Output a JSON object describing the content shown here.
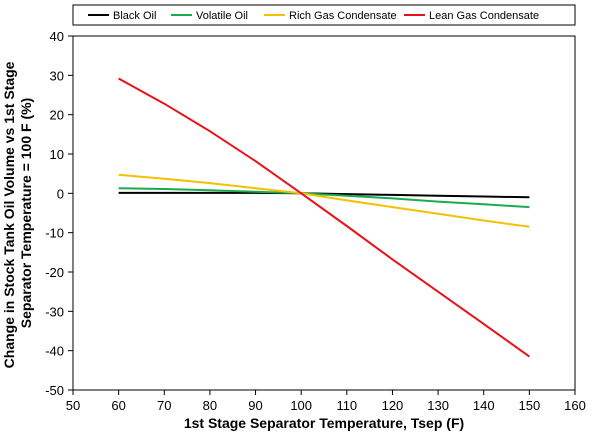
{
  "chart_data": {
    "type": "line",
    "title": "",
    "xlabel": "1st Stage Separator Temperature, Tsep (F)",
    "ylabel_lines": [
      "Change in Stock Tank Oil Volume vs 1st Stage",
      "Separator Temperature = 100 F (%)"
    ],
    "xlim": [
      50,
      160
    ],
    "ylim": [
      -50,
      40
    ],
    "xticks": [
      50,
      60,
      70,
      80,
      90,
      100,
      110,
      120,
      130,
      140,
      150,
      160
    ],
    "yticks": [
      -50,
      -40,
      -30,
      -20,
      -10,
      0,
      10,
      20,
      30,
      40
    ],
    "grid": false,
    "legend_position": "top",
    "x": [
      60,
      70,
      80,
      90,
      100,
      110,
      120,
      130,
      140,
      150
    ],
    "series": [
      {
        "name": "Black Oil",
        "color": "#000000",
        "values": [
          0.1,
          0.1,
          0.1,
          0.1,
          0,
          -0.2,
          -0.4,
          -0.6,
          -0.8,
          -1.0
        ]
      },
      {
        "name": "Volatile Oil",
        "color": "#1aab4e",
        "values": [
          1.3,
          1.1,
          0.8,
          0.4,
          0,
          -0.6,
          -1.3,
          -2.1,
          -2.8,
          -3.5
        ]
      },
      {
        "name": "Rich Gas Condensate",
        "color": "#f5c000",
        "values": [
          4.7,
          3.7,
          2.6,
          1.3,
          0,
          -1.8,
          -3.5,
          -5.2,
          -6.9,
          -8.5
        ]
      },
      {
        "name": "Lean Gas Condensate",
        "color": "#e8111a",
        "values": [
          29.2,
          22.8,
          15.8,
          8.2,
          0,
          -8.3,
          -16.8,
          -25.0,
          -33.2,
          -41.5
        ]
      }
    ]
  }
}
